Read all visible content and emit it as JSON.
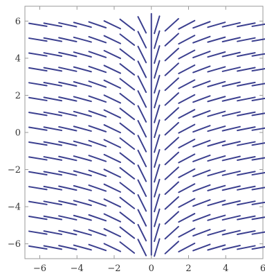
{
  "chart_data": {
    "type": "vector-field",
    "field": "slope field dy/dx = 1/x (constant in y)",
    "xlim": [
      -6.8,
      6.0
    ],
    "ylim": [
      -6.8,
      6.8
    ],
    "x_ticks": [
      {
        "value": -6,
        "label": "−6"
      },
      {
        "value": -4,
        "label": "−4"
      },
      {
        "value": -2,
        "label": "−2"
      },
      {
        "value": 0,
        "label": "0"
      },
      {
        "value": 2,
        "label": "2"
      },
      {
        "value": 4,
        "label": "4"
      },
      {
        "value": 6,
        "label": "6"
      }
    ],
    "y_ticks": [
      {
        "value": 6,
        "label": "6"
      },
      {
        "value": 4,
        "label": "4"
      },
      {
        "value": 2,
        "label": "2"
      },
      {
        "value": 0,
        "label": "0"
      },
      {
        "value": -2,
        "label": "−2"
      },
      {
        "value": -4,
        "label": "−4"
      },
      {
        "value": -6,
        "label": "−6"
      }
    ],
    "grid_x": [
      -6.1,
      -5.3,
      -4.5,
      -3.7,
      -2.9,
      -2.1,
      -1.3,
      -0.5,
      0.3,
      1.1,
      1.9,
      2.7,
      3.5,
      4.3,
      5.1,
      5.9
    ],
    "grid_y": [
      -6.2,
      -5.4,
      -4.6,
      -3.8,
      -3.0,
      -2.2,
      -1.4,
      -0.6,
      0.2,
      1.0,
      1.8,
      2.6,
      3.4,
      4.2,
      5.0,
      5.8
    ],
    "vertical_line_x": 0,
    "vertical_line_y": [
      -6.6,
      6.4
    ],
    "grid": false,
    "color": "#3b3f8f"
  }
}
